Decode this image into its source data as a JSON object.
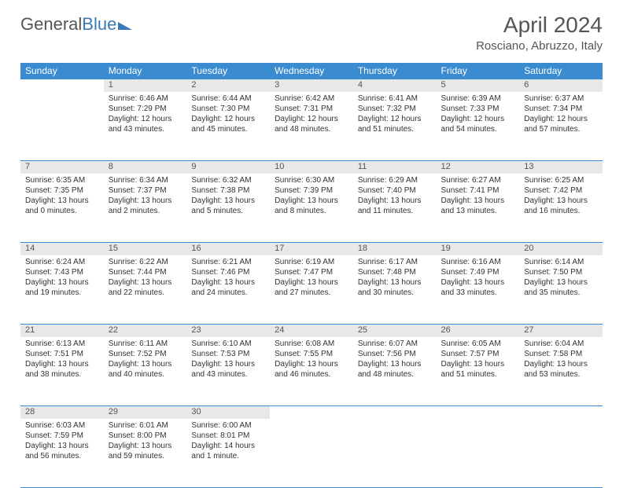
{
  "logo": {
    "part1": "General",
    "part2": "Blue"
  },
  "header": {
    "month": "April 2024",
    "location": "Rosciano, Abruzzo, Italy"
  },
  "colors": {
    "accent": "#3a8bd0",
    "daybg": "#e8e8e8",
    "text": "#333333",
    "muted": "#555555"
  },
  "weekdays": [
    "Sunday",
    "Monday",
    "Tuesday",
    "Wednesday",
    "Thursday",
    "Friday",
    "Saturday"
  ],
  "weeks": [
    {
      "days": [
        null,
        {
          "n": "1",
          "sunrise": "Sunrise: 6:46 AM",
          "sunset": "Sunset: 7:29 PM",
          "daylight": "Daylight: 12 hours and 43 minutes."
        },
        {
          "n": "2",
          "sunrise": "Sunrise: 6:44 AM",
          "sunset": "Sunset: 7:30 PM",
          "daylight": "Daylight: 12 hours and 45 minutes."
        },
        {
          "n": "3",
          "sunrise": "Sunrise: 6:42 AM",
          "sunset": "Sunset: 7:31 PM",
          "daylight": "Daylight: 12 hours and 48 minutes."
        },
        {
          "n": "4",
          "sunrise": "Sunrise: 6:41 AM",
          "sunset": "Sunset: 7:32 PM",
          "daylight": "Daylight: 12 hours and 51 minutes."
        },
        {
          "n": "5",
          "sunrise": "Sunrise: 6:39 AM",
          "sunset": "Sunset: 7:33 PM",
          "daylight": "Daylight: 12 hours and 54 minutes."
        },
        {
          "n": "6",
          "sunrise": "Sunrise: 6:37 AM",
          "sunset": "Sunset: 7:34 PM",
          "daylight": "Daylight: 12 hours and 57 minutes."
        }
      ]
    },
    {
      "days": [
        {
          "n": "7",
          "sunrise": "Sunrise: 6:35 AM",
          "sunset": "Sunset: 7:35 PM",
          "daylight": "Daylight: 13 hours and 0 minutes."
        },
        {
          "n": "8",
          "sunrise": "Sunrise: 6:34 AM",
          "sunset": "Sunset: 7:37 PM",
          "daylight": "Daylight: 13 hours and 2 minutes."
        },
        {
          "n": "9",
          "sunrise": "Sunrise: 6:32 AM",
          "sunset": "Sunset: 7:38 PM",
          "daylight": "Daylight: 13 hours and 5 minutes."
        },
        {
          "n": "10",
          "sunrise": "Sunrise: 6:30 AM",
          "sunset": "Sunset: 7:39 PM",
          "daylight": "Daylight: 13 hours and 8 minutes."
        },
        {
          "n": "11",
          "sunrise": "Sunrise: 6:29 AM",
          "sunset": "Sunset: 7:40 PM",
          "daylight": "Daylight: 13 hours and 11 minutes."
        },
        {
          "n": "12",
          "sunrise": "Sunrise: 6:27 AM",
          "sunset": "Sunset: 7:41 PM",
          "daylight": "Daylight: 13 hours and 13 minutes."
        },
        {
          "n": "13",
          "sunrise": "Sunrise: 6:25 AM",
          "sunset": "Sunset: 7:42 PM",
          "daylight": "Daylight: 13 hours and 16 minutes."
        }
      ]
    },
    {
      "days": [
        {
          "n": "14",
          "sunrise": "Sunrise: 6:24 AM",
          "sunset": "Sunset: 7:43 PM",
          "daylight": "Daylight: 13 hours and 19 minutes."
        },
        {
          "n": "15",
          "sunrise": "Sunrise: 6:22 AM",
          "sunset": "Sunset: 7:44 PM",
          "daylight": "Daylight: 13 hours and 22 minutes."
        },
        {
          "n": "16",
          "sunrise": "Sunrise: 6:21 AM",
          "sunset": "Sunset: 7:46 PM",
          "daylight": "Daylight: 13 hours and 24 minutes."
        },
        {
          "n": "17",
          "sunrise": "Sunrise: 6:19 AM",
          "sunset": "Sunset: 7:47 PM",
          "daylight": "Daylight: 13 hours and 27 minutes."
        },
        {
          "n": "18",
          "sunrise": "Sunrise: 6:17 AM",
          "sunset": "Sunset: 7:48 PM",
          "daylight": "Daylight: 13 hours and 30 minutes."
        },
        {
          "n": "19",
          "sunrise": "Sunrise: 6:16 AM",
          "sunset": "Sunset: 7:49 PM",
          "daylight": "Daylight: 13 hours and 33 minutes."
        },
        {
          "n": "20",
          "sunrise": "Sunrise: 6:14 AM",
          "sunset": "Sunset: 7:50 PM",
          "daylight": "Daylight: 13 hours and 35 minutes."
        }
      ]
    },
    {
      "days": [
        {
          "n": "21",
          "sunrise": "Sunrise: 6:13 AM",
          "sunset": "Sunset: 7:51 PM",
          "daylight": "Daylight: 13 hours and 38 minutes."
        },
        {
          "n": "22",
          "sunrise": "Sunrise: 6:11 AM",
          "sunset": "Sunset: 7:52 PM",
          "daylight": "Daylight: 13 hours and 40 minutes."
        },
        {
          "n": "23",
          "sunrise": "Sunrise: 6:10 AM",
          "sunset": "Sunset: 7:53 PM",
          "daylight": "Daylight: 13 hours and 43 minutes."
        },
        {
          "n": "24",
          "sunrise": "Sunrise: 6:08 AM",
          "sunset": "Sunset: 7:55 PM",
          "daylight": "Daylight: 13 hours and 46 minutes."
        },
        {
          "n": "25",
          "sunrise": "Sunrise: 6:07 AM",
          "sunset": "Sunset: 7:56 PM",
          "daylight": "Daylight: 13 hours and 48 minutes."
        },
        {
          "n": "26",
          "sunrise": "Sunrise: 6:05 AM",
          "sunset": "Sunset: 7:57 PM",
          "daylight": "Daylight: 13 hours and 51 minutes."
        },
        {
          "n": "27",
          "sunrise": "Sunrise: 6:04 AM",
          "sunset": "Sunset: 7:58 PM",
          "daylight": "Daylight: 13 hours and 53 minutes."
        }
      ]
    },
    {
      "days": [
        {
          "n": "28",
          "sunrise": "Sunrise: 6:03 AM",
          "sunset": "Sunset: 7:59 PM",
          "daylight": "Daylight: 13 hours and 56 minutes."
        },
        {
          "n": "29",
          "sunrise": "Sunrise: 6:01 AM",
          "sunset": "Sunset: 8:00 PM",
          "daylight": "Daylight: 13 hours and 59 minutes."
        },
        {
          "n": "30",
          "sunrise": "Sunrise: 6:00 AM",
          "sunset": "Sunset: 8:01 PM",
          "daylight": "Daylight: 14 hours and 1 minute."
        },
        null,
        null,
        null,
        null
      ]
    }
  ]
}
